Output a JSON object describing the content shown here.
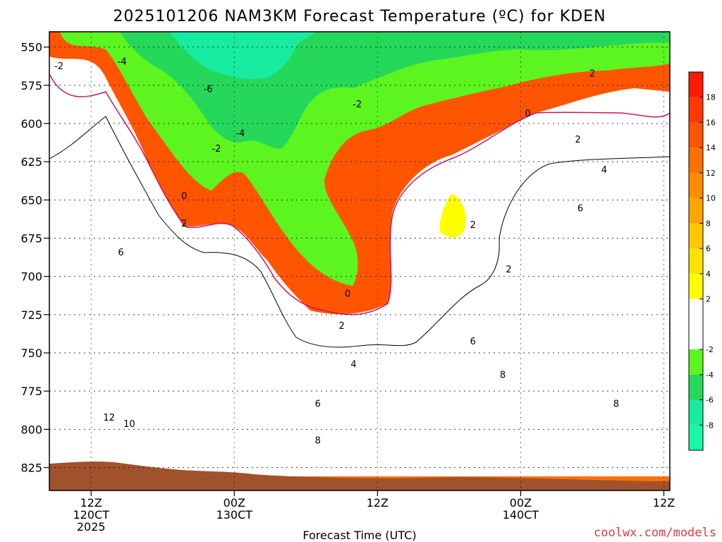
{
  "chart_data": {
    "type": "heatmap",
    "title": "2025101206 NAM3KM Forecast Temperature (ºC) for KDEN",
    "xlabel": "Forecast Time (UTC)",
    "ylabel": "",
    "credit": "coolwx.com/models",
    "x_range_hours": [
      -3.5,
      48.5
    ],
    "y_levels": [
      550,
      575,
      600,
      625,
      650,
      675,
      700,
      725,
      750,
      775,
      800,
      825
    ],
    "ylim": [
      540,
      840
    ],
    "grid": true,
    "x_ticks": [
      {
        "h": 0,
        "lines": [
          "12Z",
          "120CT",
          "2025"
        ]
      },
      {
        "h": 12,
        "lines": [
          "00Z",
          "130CT"
        ]
      },
      {
        "h": 24,
        "lines": [
          "12Z"
        ]
      },
      {
        "h": 36,
        "lines": [
          "00Z",
          "140CT"
        ]
      },
      {
        "h": 48,
        "lines": [
          "12Z"
        ]
      }
    ],
    "colorbar": {
      "ticks": [
        18,
        16,
        14,
        12,
        10,
        8,
        6,
        4,
        2,
        -2,
        -4,
        -6,
        -8
      ],
      "bands": [
        {
          "lo": -10,
          "hi": -8,
          "color": "#17f7a8"
        },
        {
          "lo": -8,
          "hi": -6,
          "color": "#17eca0"
        },
        {
          "lo": -6,
          "hi": -4,
          "color": "#26d85a"
        },
        {
          "lo": -4,
          "hi": -2,
          "color": "#5cf51f"
        },
        {
          "lo": -2,
          "hi": 2,
          "color": "#ffffff"
        },
        {
          "lo": 2,
          "hi": 4,
          "color": "#ffff00"
        },
        {
          "lo": 4,
          "hi": 6,
          "color": "#ffe100"
        },
        {
          "lo": 6,
          "hi": 8,
          "color": "#ffc800"
        },
        {
          "lo": 8,
          "hi": 10,
          "color": "#ffa500"
        },
        {
          "lo": 10,
          "hi": 12,
          "color": "#ff8c00"
        },
        {
          "lo": 12,
          "hi": 14,
          "color": "#ff7000"
        },
        {
          "lo": 14,
          "hi": 16,
          "color": "#ff5500"
        },
        {
          "lo": 16,
          "hi": 18,
          "color": "#ff3800"
        },
        {
          "lo": 18,
          "hi": 20,
          "color": "#ff1a00"
        }
      ]
    },
    "contour_labels": [
      {
        "text": "-2",
        "h": -2.7,
        "p": 563
      },
      {
        "text": "-4",
        "h": 2.6,
        "p": 560
      },
      {
        "text": "-6",
        "h": 9.8,
        "p": 578
      },
      {
        "text": "-4",
        "h": 12.5,
        "p": 607
      },
      {
        "text": "-2",
        "h": 10.5,
        "p": 617
      },
      {
        "text": "-2",
        "h": 22.3,
        "p": 588
      },
      {
        "text": "2",
        "h": 42.0,
        "p": 568
      },
      {
        "text": "0",
        "h": 36.6,
        "p": 594
      },
      {
        "text": "2",
        "h": 40.8,
        "p": 611
      },
      {
        "text": "4",
        "h": 43.0,
        "p": 631
      },
      {
        "text": "6",
        "h": 41.0,
        "p": 656
      },
      {
        "text": "0",
        "h": 7.8,
        "p": 648
      },
      {
        "text": "2",
        "h": 7.8,
        "p": 666
      },
      {
        "text": "2",
        "h": 32.0,
        "p": 667
      },
      {
        "text": "2",
        "h": 35.0,
        "p": 696
      },
      {
        "text": "0",
        "h": 21.5,
        "p": 712
      },
      {
        "text": "2",
        "h": 21.0,
        "p": 733
      },
      {
        "text": "4",
        "h": 22.0,
        "p": 758
      },
      {
        "text": "6",
        "h": 32.0,
        "p": 743
      },
      {
        "text": "8",
        "h": 34.5,
        "p": 765
      },
      {
        "text": "6",
        "h": 19.0,
        "p": 784
      },
      {
        "text": "8",
        "h": 19.0,
        "p": 808
      },
      {
        "text": "6",
        "h": 2.5,
        "p": 685
      },
      {
        "text": "12",
        "h": 1.5,
        "p": 793
      },
      {
        "text": "10",
        "h": 3.2,
        "p": 797
      },
      {
        "text": "8",
        "h": 44.0,
        "p": 784
      }
    ]
  }
}
